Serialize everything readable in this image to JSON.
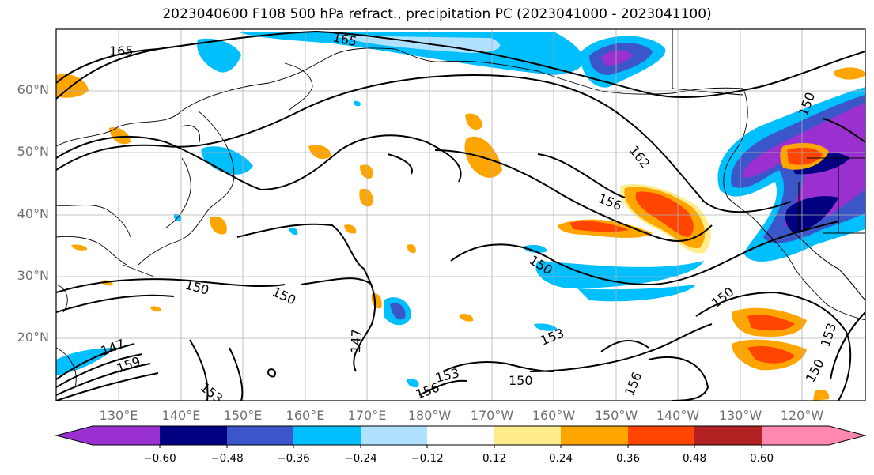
{
  "title": "2023040600 F108 500 hPa refract., precipitation PC (2023041000 - 2023041100)",
  "lat_labels": [
    "60°N",
    "50°N",
    "40°N",
    "30°N",
    "20°N"
  ],
  "lon_labels": [
    "130°E",
    "140°E",
    "150°E",
    "160°E",
    "170°E",
    "180°W",
    "170°W",
    "160°W",
    "150°W",
    "140°W",
    "130°W",
    "120°W"
  ],
  "contour_labels": [
    "165",
    "165",
    "162",
    "156",
    "150",
    "150",
    "150",
    "150",
    "147",
    "147",
    "159",
    "153",
    "156",
    "153",
    "150",
    "156",
    "153",
    "150",
    "150",
    "153"
  ],
  "colorbar": {
    "ticks": [
      "−0.60",
      "−0.48",
      "−0.36",
      "−0.24",
      "−0.12",
      "0.12",
      "0.24",
      "0.36",
      "0.48",
      "0.60"
    ],
    "colors": [
      "#9b30d0",
      "#000080",
      "#3a56c8",
      "#00bfff",
      "#b0e2ff",
      "#ffffff",
      "#ffec8b",
      "#ffa500",
      "#ff4500",
      "#b22222",
      "#ff87b0"
    ]
  }
}
